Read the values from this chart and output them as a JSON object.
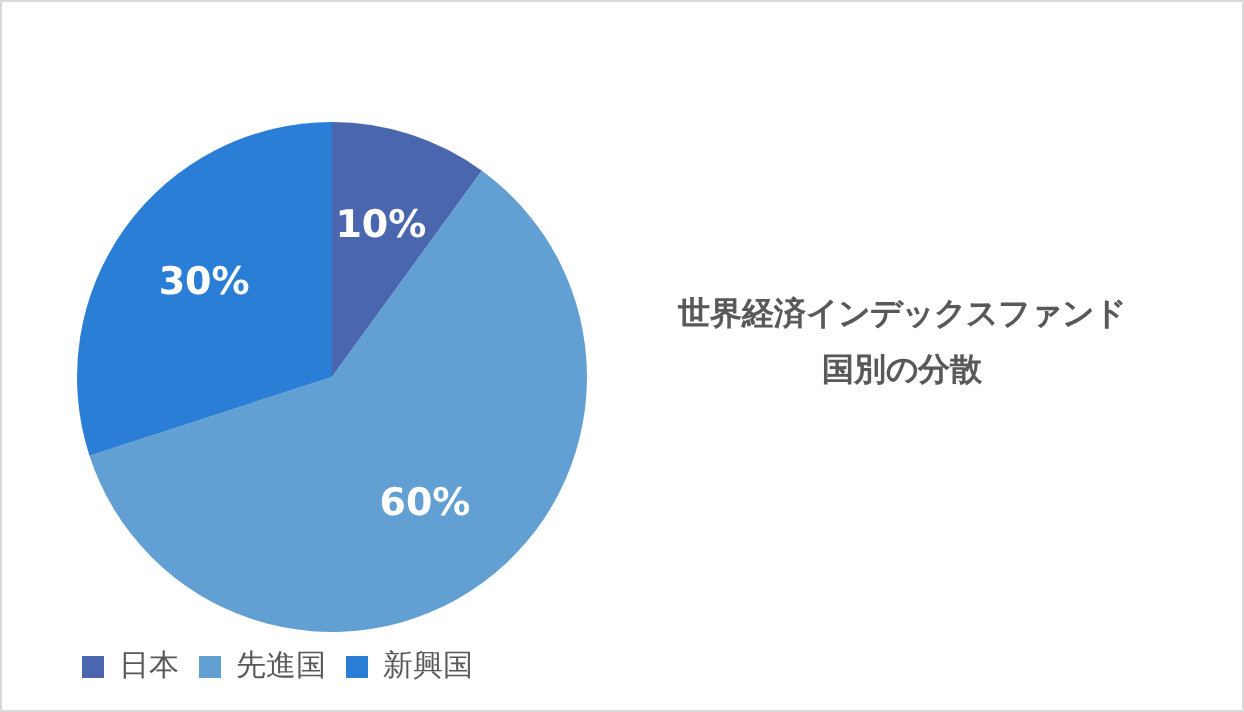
{
  "chart_data": {
    "type": "pie",
    "title": "世界経済インデックスファンド",
    "subtitle": "国別の分散",
    "categories": [
      "日本",
      "先進国",
      "新興国"
    ],
    "values": [
      10,
      60,
      30
    ],
    "colors": [
      "#4a66ae",
      "#629fd2",
      "#2b7ed6"
    ],
    "value_labels": [
      "10%",
      "60%",
      "30%"
    ],
    "legend": "bottom left"
  }
}
